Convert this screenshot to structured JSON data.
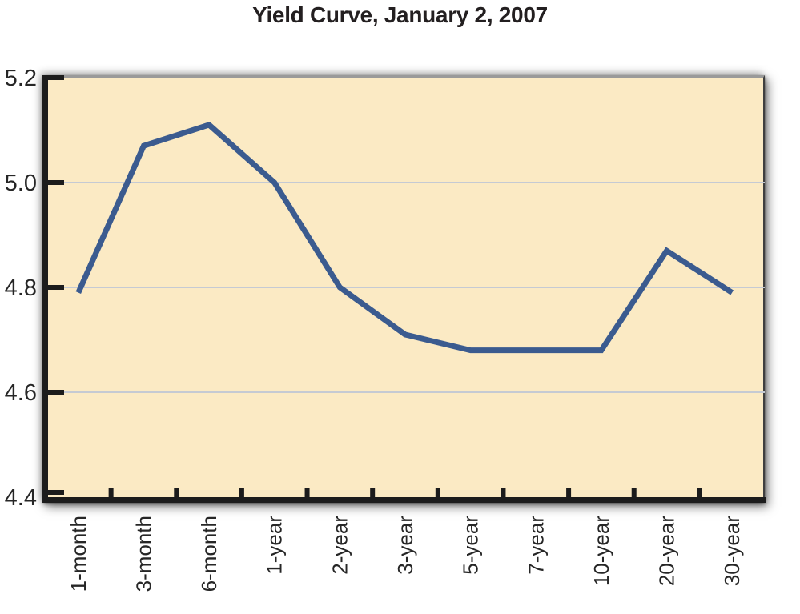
{
  "chart": {
    "title": "Yield Curve, January 2, 2007",
    "colors": {
      "page_bg": "#ffffff",
      "plot_bg": "#fbeac4",
      "line": "#3b5b8f",
      "gridline": "#c5cad3",
      "axis": "#1c1c1c",
      "text": "#262626",
      "border_top": "#9a9a9a",
      "border_right": "#3f3f3f"
    }
  },
  "chart_data": {
    "type": "line",
    "title": "Yield Curve, January 2, 2007",
    "categories": [
      "1-month",
      "3-month",
      "6-month",
      "1-year",
      "2-year",
      "3-year",
      "5-year",
      "7-year",
      "10-year",
      "20-year",
      "30-year"
    ],
    "values": [
      4.79,
      5.07,
      5.11,
      5.0,
      4.8,
      4.71,
      4.68,
      4.68,
      4.68,
      4.87,
      4.79
    ],
    "xlabel": "",
    "ylabel": "",
    "ylim": [
      4.4,
      5.2
    ],
    "yticks": [
      {
        "label": "5.2",
        "value": 5.2
      },
      {
        "label": "5.0",
        "value": 5.0
      },
      {
        "label": "4.8",
        "value": 4.8
      },
      {
        "label": "4.6",
        "value": 4.6
      },
      {
        "label": "4.4",
        "value": 4.4
      }
    ],
    "grid": "horizontal-gridlines-at-interior-yticks",
    "legend": "none",
    "markers": "none"
  }
}
